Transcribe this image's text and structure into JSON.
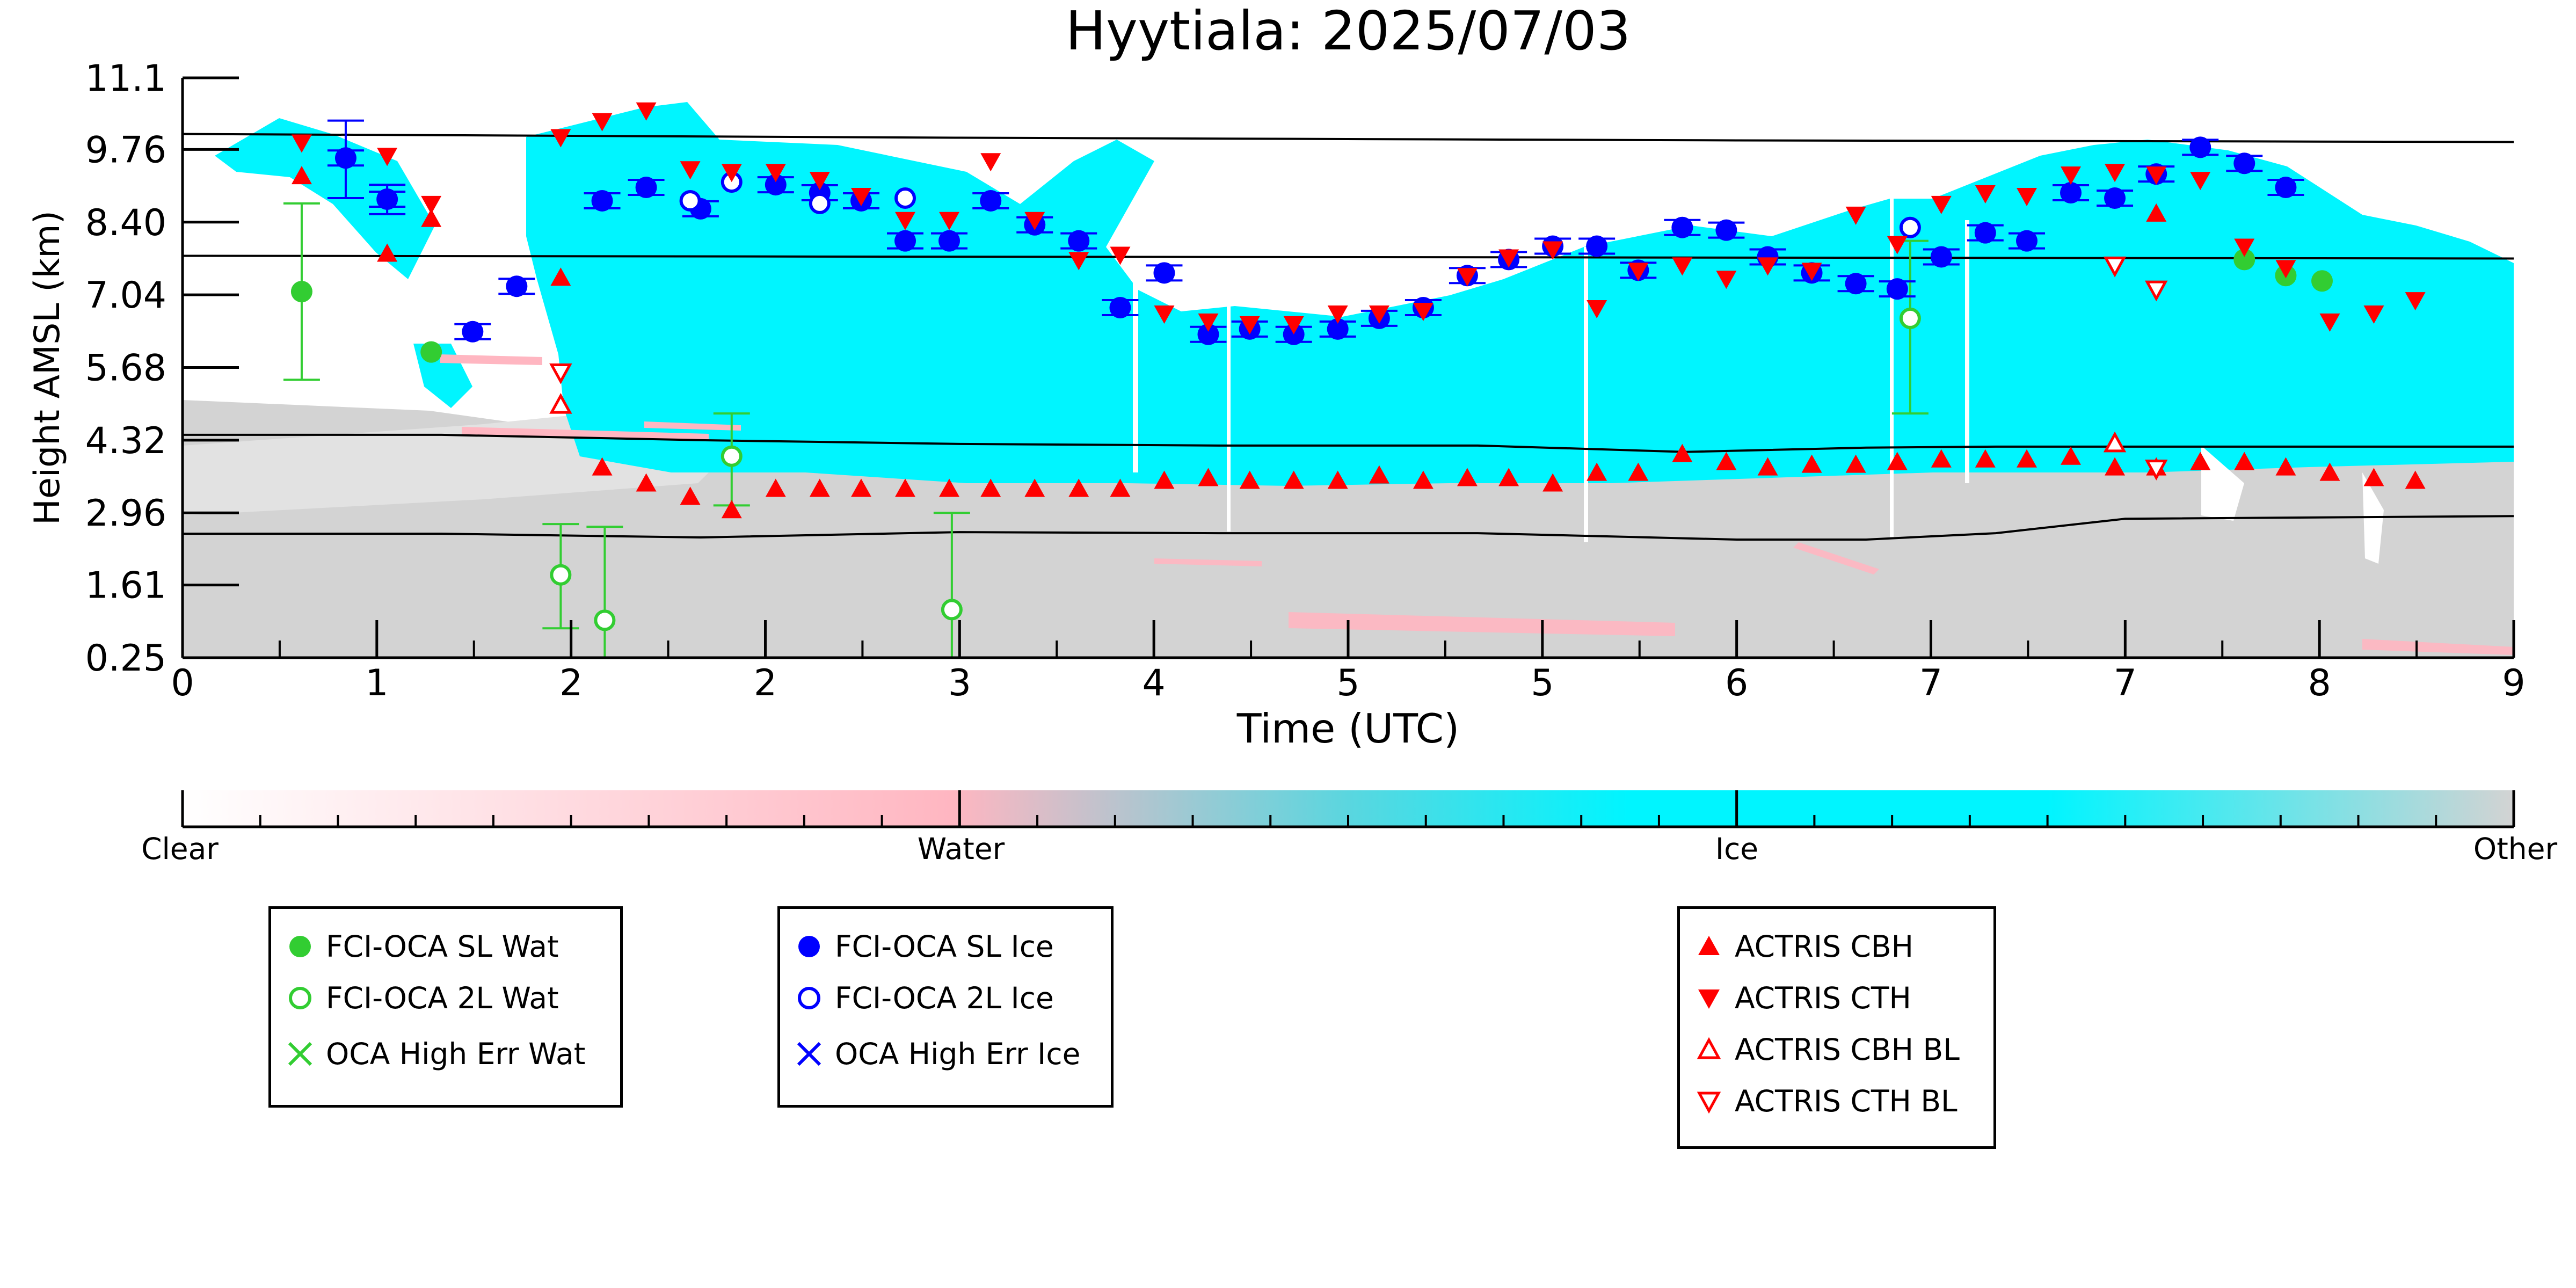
{
  "chart_data": {
    "type": "scatter",
    "title": "Hyytiala: 2025/07/03",
    "xlabel": "Time (UTC)",
    "ylabel": "Height AMSL (km)",
    "xlim": [
      0,
      9
    ],
    "ylim": [
      0.25,
      11.1
    ],
    "x_ticks": [
      0,
      0.75,
      1.5,
      2.25,
      3,
      3.75,
      4.5,
      5.25,
      6,
      6.75,
      7.5,
      8.25,
      9
    ],
    "x_tick_labels": [
      "0",
      "1",
      "2",
      "2",
      "3",
      "4",
      "5",
      "5",
      "6",
      "7",
      "7",
      "8",
      "9"
    ],
    "y_ticks": [
      0.25,
      1.61,
      2.96,
      4.32,
      5.68,
      7.04,
      8.4,
      9.76,
      11.1
    ],
    "y_tick_labels": [
      "0.25",
      "1.61",
      "2.96",
      "4.32",
      "5.68",
      "7.04",
      "8.40",
      "9.76",
      "11.1"
    ],
    "grid": false,
    "background_classification": {
      "colorbar_labels": [
        "Clear",
        "Water",
        "Ice",
        "Other"
      ],
      "colors": {
        "clear": "#ffffff",
        "water": "#ffb6c1",
        "ice": "#00f5ff",
        "other": "#d3d3d3"
      }
    },
    "reference_lines": [
      {
        "x": [
          0,
          3,
          6,
          9
        ],
        "y": [
          10.05,
          9.98,
          9.93,
          9.9
        ]
      },
      {
        "x": [
          0,
          9
        ],
        "y": [
          7.77,
          7.72
        ]
      },
      {
        "x": [
          0,
          1,
          2,
          3,
          4,
          5,
          5.8,
          6.5,
          7,
          9
        ],
        "y": [
          4.42,
          4.42,
          4.32,
          4.25,
          4.22,
          4.22,
          4.1,
          4.18,
          4.2,
          4.2
        ]
      },
      {
        "x": [
          0,
          1,
          2,
          3,
          4,
          5,
          6,
          6.5,
          7,
          7.5,
          9
        ],
        "y": [
          2.57,
          2.57,
          2.5,
          2.6,
          2.58,
          2.58,
          2.46,
          2.46,
          2.58,
          2.85,
          2.9
        ]
      }
    ],
    "series": [
      {
        "name": "FCI-OCA SL Wat",
        "marker": "filled-circle",
        "color": "#32cd32",
        "points": [
          [
            0.46,
            7.1
          ],
          [
            0.96,
            5.97
          ],
          [
            7.96,
            7.7
          ],
          [
            8.12,
            7.4
          ],
          [
            8.26,
            7.3
          ]
        ],
        "err": [
          [
            0.46,
            5.45,
            8.75
          ]
        ]
      },
      {
        "name": "FCI-OCA 2L Wat",
        "marker": "open-circle",
        "color": "#32cd32",
        "points": [
          [
            1.46,
            1.8
          ],
          [
            1.63,
            0.95
          ],
          [
            2.12,
            4.02
          ],
          [
            2.97,
            1.15
          ],
          [
            6.67,
            6.6
          ]
        ],
        "err": [
          [
            1.46,
            0.8,
            2.75
          ],
          [
            1.63,
            0.25,
            2.7
          ],
          [
            2.12,
            3.1,
            4.82
          ],
          [
            2.97,
            0.25,
            2.96
          ],
          [
            6.67,
            4.82,
            8.05
          ]
        ]
      },
      {
        "name": "OCA High Err Wat",
        "marker": "x",
        "color": "#32cd32",
        "points": []
      },
      {
        "name": "FCI-OCA SL Ice",
        "marker": "filled-circle",
        "color": "#0000ff",
        "points": [
          [
            0.63,
            9.6
          ],
          [
            0.79,
            8.83
          ],
          [
            1.12,
            6.35
          ],
          [
            1.29,
            7.2
          ],
          [
            1.62,
            8.8
          ],
          [
            1.79,
            9.05
          ],
          [
            2.0,
            8.65
          ],
          [
            2.29,
            9.1
          ],
          [
            2.46,
            8.95
          ],
          [
            2.62,
            8.8
          ],
          [
            2.79,
            8.05
          ],
          [
            2.96,
            8.05
          ],
          [
            3.12,
            8.8
          ],
          [
            3.29,
            8.35
          ],
          [
            3.46,
            8.05
          ],
          [
            3.62,
            6.8
          ],
          [
            3.79,
            7.45
          ],
          [
            3.96,
            6.3
          ],
          [
            4.12,
            6.4
          ],
          [
            4.29,
            6.3
          ],
          [
            4.46,
            6.4
          ],
          [
            4.62,
            6.6
          ],
          [
            4.79,
            6.8
          ],
          [
            4.96,
            7.4
          ],
          [
            5.12,
            7.7
          ],
          [
            5.29,
            7.95
          ],
          [
            5.46,
            7.95
          ],
          [
            5.62,
            7.5
          ],
          [
            5.79,
            8.3
          ],
          [
            5.96,
            8.25
          ],
          [
            6.12,
            7.75
          ],
          [
            6.29,
            7.45
          ],
          [
            6.46,
            7.25
          ],
          [
            6.62,
            7.15
          ],
          [
            6.79,
            7.75
          ],
          [
            6.96,
            8.2
          ],
          [
            7.12,
            8.05
          ],
          [
            7.29,
            8.95
          ],
          [
            7.46,
            8.85
          ],
          [
            7.62,
            9.3
          ],
          [
            7.79,
            9.8
          ],
          [
            7.96,
            9.5
          ],
          [
            8.12,
            9.05
          ]
        ],
        "err": [
          [
            0.63,
            8.85,
            10.3
          ],
          [
            0.79,
            8.55,
            9.1
          ]
        ]
      },
      {
        "name": "FCI-OCA 2L Ice",
        "marker": "open-circle",
        "color": "#0000ff",
        "points": [
          [
            1.96,
            8.8
          ],
          [
            2.12,
            9.15
          ],
          [
            2.46,
            8.75
          ],
          [
            2.79,
            8.85
          ],
          [
            6.67,
            8.3
          ]
        ]
      },
      {
        "name": "OCA High Err Ice",
        "marker": "x",
        "color": "#0000ff",
        "points": []
      },
      {
        "name": "ACTRIS CBH",
        "marker": "triangle-up",
        "color": "#ff0000",
        "points": [
          [
            0.46,
            9.25
          ],
          [
            0.79,
            7.8
          ],
          [
            0.96,
            8.45
          ],
          [
            1.46,
            7.35
          ],
          [
            1.62,
            3.8
          ],
          [
            1.79,
            3.5
          ],
          [
            1.96,
            3.25
          ],
          [
            2.12,
            3.0
          ],
          [
            2.29,
            3.4
          ],
          [
            2.46,
            3.4
          ],
          [
            2.62,
            3.4
          ],
          [
            2.79,
            3.4
          ],
          [
            2.96,
            3.4
          ],
          [
            3.12,
            3.4
          ],
          [
            3.29,
            3.4
          ],
          [
            3.46,
            3.4
          ],
          [
            3.62,
            3.4
          ],
          [
            3.79,
            3.55
          ],
          [
            3.96,
            3.6
          ],
          [
            4.12,
            3.55
          ],
          [
            4.29,
            3.55
          ],
          [
            4.46,
            3.55
          ],
          [
            4.62,
            3.65
          ],
          [
            4.79,
            3.55
          ],
          [
            4.96,
            3.6
          ],
          [
            5.12,
            3.6
          ],
          [
            5.29,
            3.5
          ],
          [
            5.46,
            3.7
          ],
          [
            5.62,
            3.7
          ],
          [
            5.79,
            4.05
          ],
          [
            5.96,
            3.9
          ],
          [
            6.12,
            3.8
          ],
          [
            6.29,
            3.85
          ],
          [
            6.46,
            3.85
          ],
          [
            6.62,
            3.9
          ],
          [
            6.79,
            3.95
          ],
          [
            6.96,
            3.95
          ],
          [
            7.12,
            3.95
          ],
          [
            7.29,
            4.0
          ],
          [
            7.46,
            3.8
          ],
          [
            7.62,
            3.8
          ],
          [
            7.79,
            3.9
          ],
          [
            7.96,
            3.9
          ],
          [
            8.12,
            3.8
          ],
          [
            8.29,
            3.7
          ],
          [
            8.46,
            3.6
          ],
          [
            8.62,
            3.55
          ],
          [
            7.62,
            8.55
          ]
        ]
      },
      {
        "name": "ACTRIS CTH",
        "marker": "triangle-down",
        "color": "#ff0000",
        "points": [
          [
            0.46,
            9.9
          ],
          [
            0.79,
            9.65
          ],
          [
            0.96,
            8.75
          ],
          [
            1.46,
            10.0
          ],
          [
            1.62,
            10.3
          ],
          [
            1.79,
            10.5
          ],
          [
            1.96,
            9.4
          ],
          [
            2.12,
            9.35
          ],
          [
            2.29,
            9.35
          ],
          [
            2.46,
            9.2
          ],
          [
            2.62,
            8.9
          ],
          [
            2.79,
            8.45
          ],
          [
            2.96,
            8.45
          ],
          [
            3.12,
            9.55
          ],
          [
            3.29,
            8.45
          ],
          [
            3.46,
            7.7
          ],
          [
            3.62,
            7.8
          ],
          [
            3.79,
            6.7
          ],
          [
            3.96,
            6.55
          ],
          [
            4.12,
            6.5
          ],
          [
            4.29,
            6.5
          ],
          [
            4.46,
            6.7
          ],
          [
            4.62,
            6.7
          ],
          [
            4.79,
            6.75
          ],
          [
            4.96,
            7.4
          ],
          [
            5.12,
            7.75
          ],
          [
            5.29,
            7.9
          ],
          [
            5.46,
            6.8
          ],
          [
            5.62,
            7.5
          ],
          [
            5.79,
            7.6
          ],
          [
            5.96,
            7.35
          ],
          [
            6.12,
            7.6
          ],
          [
            6.29,
            7.5
          ],
          [
            6.46,
            8.55
          ],
          [
            6.62,
            8.0
          ],
          [
            6.79,
            8.75
          ],
          [
            6.96,
            8.95
          ],
          [
            7.12,
            8.9
          ],
          [
            7.29,
            9.3
          ],
          [
            7.46,
            9.35
          ],
          [
            7.62,
            9.3
          ],
          [
            7.79,
            9.2
          ],
          [
            7.96,
            7.95
          ],
          [
            8.12,
            7.55
          ],
          [
            8.29,
            6.55
          ],
          [
            8.46,
            6.7
          ],
          [
            8.62,
            6.95
          ]
        ]
      },
      {
        "name": "ACTRIS CBH BL",
        "marker": "open-triangle-up",
        "color": "#ff0000",
        "points": [
          [
            1.46,
            4.97
          ],
          [
            7.46,
            4.25
          ]
        ]
      },
      {
        "name": "ACTRIS CTH BL",
        "marker": "open-triangle-down",
        "color": "#ff0000",
        "points": [
          [
            1.46,
            5.6
          ],
          [
            7.46,
            7.6
          ],
          [
            7.62,
            7.15
          ],
          [
            7.62,
            3.8
          ]
        ]
      }
    ]
  }
}
